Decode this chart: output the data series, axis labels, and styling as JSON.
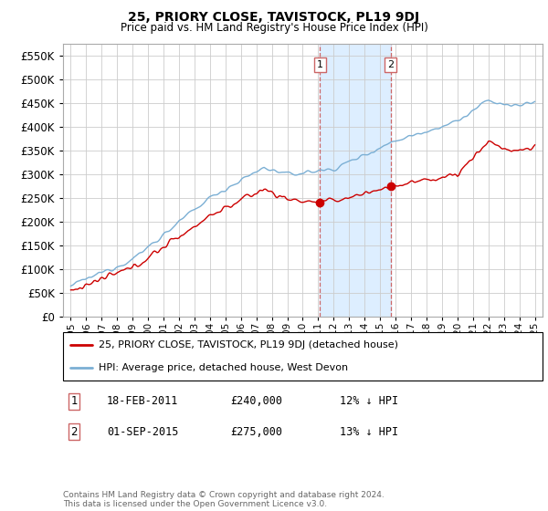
{
  "title": "25, PRIORY CLOSE, TAVISTOCK, PL19 9DJ",
  "subtitle": "Price paid vs. HM Land Registry's House Price Index (HPI)",
  "legend_line1": "25, PRIORY CLOSE, TAVISTOCK, PL19 9DJ (detached house)",
  "legend_line2": "HPI: Average price, detached house, West Devon",
  "transaction1_label": "1",
  "transaction1_date": "18-FEB-2011",
  "transaction1_price": "£240,000",
  "transaction1_hpi": "12% ↓ HPI",
  "transaction1_year": 2011.12,
  "transaction1_value": 240000,
  "transaction2_label": "2",
  "transaction2_date": "01-SEP-2015",
  "transaction2_price": "£275,000",
  "transaction2_hpi": "13% ↓ HPI",
  "transaction2_year": 2015.67,
  "transaction2_value": 275000,
  "hpi_color": "#7bafd4",
  "price_color": "#cc0000",
  "highlight_color": "#ddeeff",
  "highlight_border": "#cc6666",
  "footer": "Contains HM Land Registry data © Crown copyright and database right 2024.\nThis data is licensed under the Open Government Licence v3.0.",
  "ylim_min": 0,
  "ylim_max": 575000,
  "yticks": [
    0,
    50000,
    100000,
    150000,
    200000,
    250000,
    300000,
    350000,
    400000,
    450000,
    500000,
    550000
  ],
  "xlabel_start": 1995,
  "xlabel_end": 2025
}
